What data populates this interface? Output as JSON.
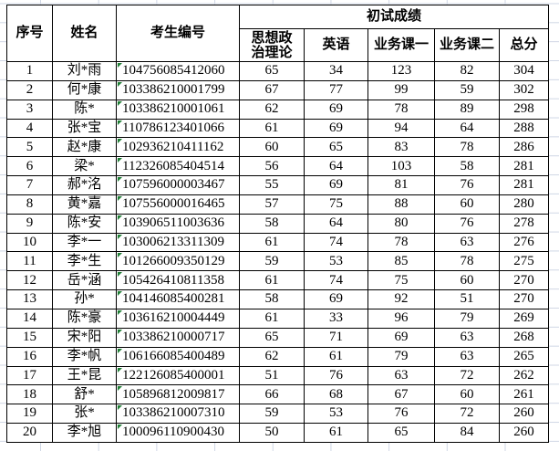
{
  "table": {
    "headers": {
      "col_no": "序号",
      "col_name": "姓名",
      "col_id": "考生编号",
      "group_scores": "初试成绩",
      "sub": [
        "思想政治理论",
        "英语",
        "业务课一",
        "业务课二",
        "总分"
      ]
    },
    "rows": [
      {
        "no": "1",
        "name": "刘*雨",
        "id": "104756085412060",
        "scores": [
          "65",
          "34",
          "123",
          "82",
          "304"
        ]
      },
      {
        "no": "2",
        "name": "何*康",
        "id": "103386210001799",
        "scores": [
          "67",
          "77",
          "99",
          "59",
          "302"
        ]
      },
      {
        "no": "3",
        "name": "陈*",
        "id": "103386210001061",
        "scores": [
          "62",
          "69",
          "78",
          "89",
          "298"
        ]
      },
      {
        "no": "4",
        "name": "张*宝",
        "id": "110786123401066",
        "scores": [
          "61",
          "69",
          "94",
          "64",
          "288"
        ]
      },
      {
        "no": "5",
        "name": "赵*康",
        "id": "102936210411162",
        "scores": [
          "60",
          "65",
          "83",
          "78",
          "286"
        ]
      },
      {
        "no": "6",
        "name": "梁*",
        "id": "112326085404514",
        "scores": [
          "56",
          "64",
          "103",
          "58",
          "281"
        ]
      },
      {
        "no": "7",
        "name": "郝*洺",
        "id": "107596000003467",
        "scores": [
          "55",
          "69",
          "81",
          "76",
          "281"
        ]
      },
      {
        "no": "8",
        "name": "黄*嘉",
        "id": "107556000016465",
        "scores": [
          "57",
          "75",
          "88",
          "60",
          "280"
        ]
      },
      {
        "no": "9",
        "name": "陈*安",
        "id": "103906511003636",
        "scores": [
          "58",
          "64",
          "80",
          "76",
          "278"
        ]
      },
      {
        "no": "10",
        "name": "李*一",
        "id": "103006213311309",
        "scores": [
          "61",
          "74",
          "78",
          "63",
          "276"
        ]
      },
      {
        "no": "11",
        "name": "李*生",
        "id": "101266009350129",
        "scores": [
          "59",
          "53",
          "85",
          "78",
          "275"
        ]
      },
      {
        "no": "12",
        "name": "岳*涵",
        "id": "105426410811358",
        "scores": [
          "61",
          "74",
          "75",
          "60",
          "270"
        ]
      },
      {
        "no": "13",
        "name": "孙*",
        "id": "104146085400281",
        "scores": [
          "58",
          "69",
          "92",
          "51",
          "270"
        ]
      },
      {
        "no": "14",
        "name": "陈*豪",
        "id": "103616210004449",
        "scores": [
          "61",
          "33",
          "96",
          "79",
          "269"
        ]
      },
      {
        "no": "15",
        "name": "宋*阳",
        "id": "103386210000717",
        "scores": [
          "65",
          "71",
          "69",
          "63",
          "268"
        ]
      },
      {
        "no": "16",
        "name": "李*帆",
        "id": "106166085400489",
        "scores": [
          "62",
          "61",
          "79",
          "63",
          "265"
        ]
      },
      {
        "no": "17",
        "name": "王*昆",
        "id": "122126085400001",
        "scores": [
          "51",
          "76",
          "63",
          "72",
          "262"
        ]
      },
      {
        "no": "18",
        "name": "舒*",
        "id": "105896812009817",
        "scores": [
          "66",
          "68",
          "67",
          "60",
          "261"
        ]
      },
      {
        "no": "19",
        "name": "张*",
        "id": "103386210007310",
        "scores": [
          "59",
          "53",
          "76",
          "72",
          "260"
        ]
      },
      {
        "no": "20",
        "name": "李*旭",
        "id": "100096110900430",
        "scores": [
          "50",
          "61",
          "65",
          "84",
          "260"
        ]
      }
    ]
  },
  "icons": {
    "cell_flag": "number-stored-as-text-flag"
  },
  "colors": {
    "table_border": "#000000",
    "gridline": "#d0d7e5",
    "flag_green": "#1e7e34",
    "text": "#000000",
    "background": "#ffffff"
  }
}
